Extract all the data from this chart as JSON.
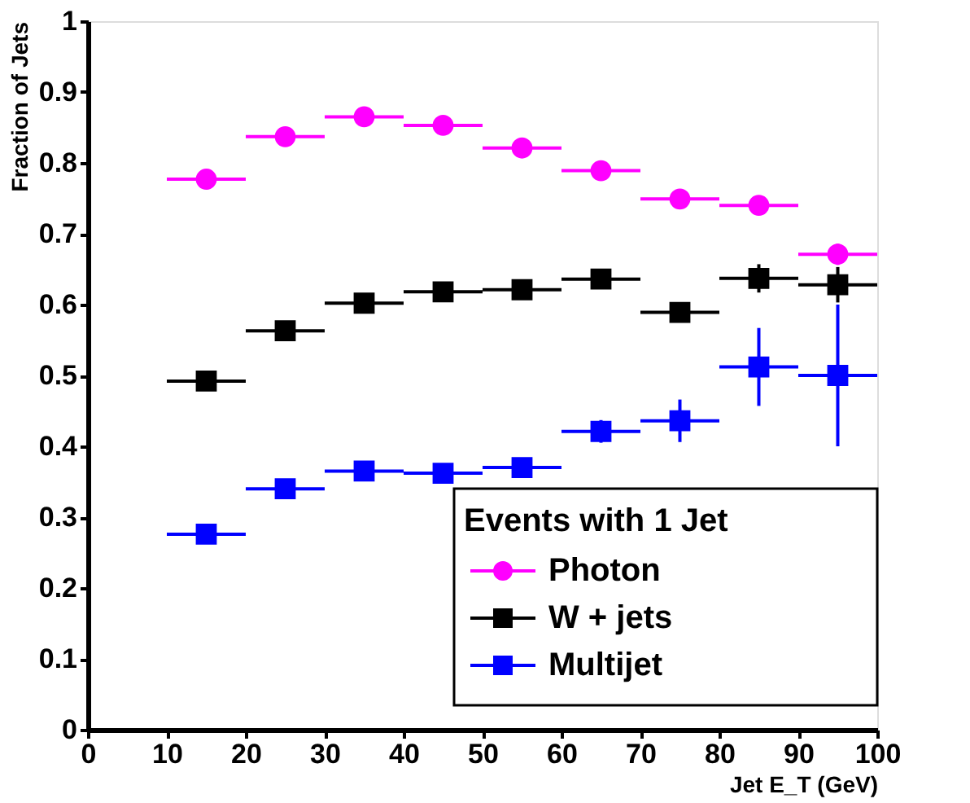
{
  "chart_data": {
    "type": "scatter",
    "xlabel": "Jet E_T (GeV)",
    "ylabel": "Fraction of Jets",
    "legend_title": "Events with 1 Jet",
    "legend": "bottom right",
    "grid": false,
    "x": [
      15,
      25,
      35,
      45,
      55,
      65,
      75,
      85,
      95
    ],
    "xlim": [
      0,
      100
    ],
    "xticks": [
      0,
      10,
      20,
      30,
      40,
      50,
      60,
      70,
      80,
      90,
      100
    ],
    "ylim": [
      0,
      1
    ],
    "yticks": [
      0,
      0.1,
      0.2,
      0.3,
      0.4,
      0.5,
      0.6,
      0.7,
      0.8,
      0.9,
      1
    ],
    "series": [
      {
        "name": "Photon",
        "color": "#ff00ff",
        "marker": "circle",
        "values": [
          0.777,
          0.837,
          0.865,
          0.853,
          0.821,
          0.789,
          0.749,
          0.74,
          0.671
        ],
        "xerrors": [
          5,
          5,
          5,
          5,
          5,
          5,
          5,
          5,
          5
        ],
        "errors": [
          null,
          null,
          null,
          null,
          null,
          null,
          null,
          null,
          0.015
        ]
      },
      {
        "name": "W + jets",
        "color": "#000000",
        "marker": "square",
        "values": [
          0.492,
          0.563,
          0.602,
          0.618,
          0.621,
          0.636,
          0.589,
          0.637,
          0.628
        ],
        "xerrors": [
          5,
          5,
          5,
          5,
          5,
          5,
          5,
          5,
          5
        ],
        "errors": [
          null,
          null,
          null,
          null,
          null,
          null,
          0.013,
          0.02,
          0.025
        ]
      },
      {
        "name": "Multijet",
        "color": "#0000ff",
        "marker": "square",
        "values": [
          0.276,
          0.34,
          0.365,
          0.362,
          0.37,
          0.421,
          0.436,
          0.512,
          0.5
        ],
        "xerrors": [
          5,
          5,
          5,
          5,
          5,
          5,
          5,
          5,
          5
        ],
        "errors": [
          null,
          null,
          null,
          null,
          null,
          0.016,
          0.03,
          0.055,
          0.1
        ]
      }
    ]
  }
}
